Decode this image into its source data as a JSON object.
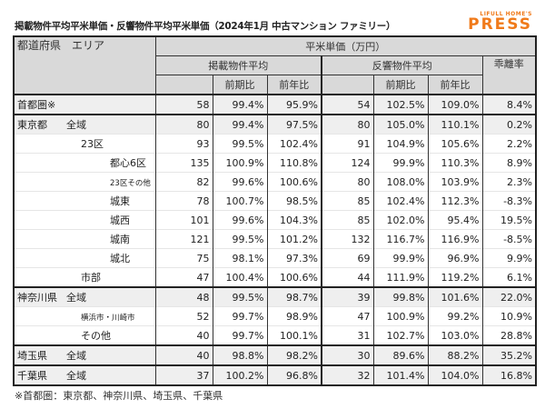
{
  "title": "掲載物件平均平米単価・反響物件平均平米単価（2024年1月 中古マンション ファミリー）",
  "logo": {
    "small": "LIFULL HOME'S",
    "big": "PRESS"
  },
  "header": {
    "area": "都道府県　エリア",
    "unit": "平米単価（万円）",
    "listed": "掲載物件平均",
    "inquiry": "反響物件平均",
    "gap": "乖離率",
    "qoq": "前期比",
    "yoy": "前年比"
  },
  "rows": [
    {
      "pref": "首都圏※",
      "area": "",
      "v": [
        "58",
        "99.4%",
        "95.9%",
        "54",
        "102.5%",
        "109.0%",
        "8.4%"
      ]
    },
    {
      "pref": "東京都",
      "area": "全域",
      "v": [
        "80",
        "99.4%",
        "97.5%",
        "80",
        "105.0%",
        "110.1%",
        "0.2%"
      ]
    },
    {
      "pref": "",
      "area": "23区",
      "v": [
        "93",
        "99.5%",
        "102.4%",
        "91",
        "104.9%",
        "105.6%",
        "2.2%"
      ]
    },
    {
      "pref": "",
      "area": "都心6区",
      "v": [
        "135",
        "100.9%",
        "110.8%",
        "124",
        "99.9%",
        "110.3%",
        "8.9%"
      ]
    },
    {
      "pref": "",
      "area": "23区その他",
      "v": [
        "82",
        "99.6%",
        "100.6%",
        "80",
        "108.0%",
        "103.9%",
        "2.3%"
      ]
    },
    {
      "pref": "",
      "area": "城東",
      "v": [
        "78",
        "100.7%",
        "98.5%",
        "85",
        "102.4%",
        "112.3%",
        "-8.3%"
      ]
    },
    {
      "pref": "",
      "area": "城西",
      "v": [
        "101",
        "99.6%",
        "104.3%",
        "85",
        "102.0%",
        "95.4%",
        "19.5%"
      ]
    },
    {
      "pref": "",
      "area": "城南",
      "v": [
        "121",
        "99.5%",
        "101.2%",
        "132",
        "116.7%",
        "116.9%",
        "-8.5%"
      ]
    },
    {
      "pref": "",
      "area": "城北",
      "v": [
        "75",
        "98.1%",
        "97.3%",
        "69",
        "99.9%",
        "96.9%",
        "9.9%"
      ]
    },
    {
      "pref": "",
      "area": "市部",
      "v": [
        "47",
        "100.4%",
        "100.6%",
        "44",
        "111.9%",
        "119.2%",
        "6.1%"
      ]
    },
    {
      "pref": "神奈川県",
      "area": "全域",
      "v": [
        "48",
        "99.5%",
        "98.7%",
        "39",
        "99.8%",
        "101.6%",
        "22.0%"
      ]
    },
    {
      "pref": "",
      "area": "横浜市・川崎市",
      "v": [
        "52",
        "99.7%",
        "98.9%",
        "47",
        "100.9%",
        "99.2%",
        "10.9%"
      ]
    },
    {
      "pref": "",
      "area": "その他",
      "v": [
        "40",
        "99.7%",
        "100.1%",
        "31",
        "102.7%",
        "103.0%",
        "28.8%"
      ]
    },
    {
      "pref": "埼玉県",
      "area": "全域",
      "v": [
        "40",
        "98.8%",
        "98.2%",
        "30",
        "89.6%",
        "88.2%",
        "35.2%"
      ]
    },
    {
      "pref": "千葉県",
      "area": "全域",
      "v": [
        "37",
        "100.2%",
        "96.8%",
        "32",
        "101.4%",
        "104.0%",
        "16.8%"
      ]
    }
  ],
  "footnote": "※首都圏：東京都、神奈川県、埼玉県、千葉県"
}
